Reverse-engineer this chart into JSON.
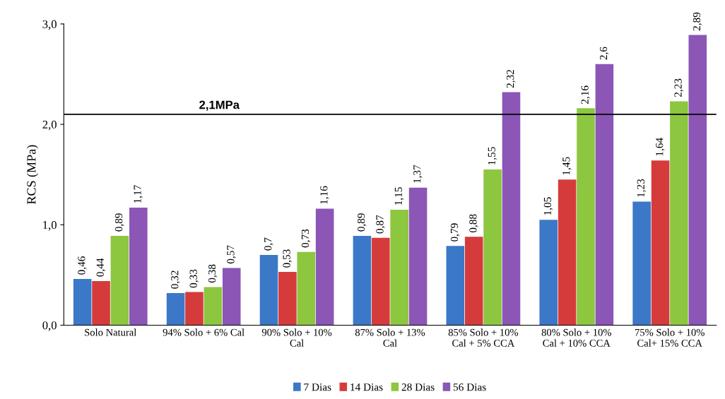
{
  "chart_data": {
    "type": "bar",
    "ylabel": "RCS (MPa)",
    "categories": [
      "Solo Natural",
      "94% Solo + 6% Cal",
      "90% Solo + 10%\nCal",
      "87% Solo + 13%\nCal",
      "85% Solo + 10%\nCal + 5% CCA",
      "80% Solo + 10%\nCal + 10% CCA",
      "75% Solo + 10%\nCal+ 15% CCA"
    ],
    "series": [
      {
        "name": "7 Dias",
        "color": "#3b78c8",
        "values": [
          0.46,
          0.32,
          0.7,
          0.89,
          0.79,
          1.05,
          1.23
        ],
        "value_labels": [
          "0,46",
          "0,32",
          "0,7",
          "0,89",
          "0,79",
          "1,05",
          "1,23"
        ]
      },
      {
        "name": "14 Dias",
        "color": "#d63b3b",
        "values": [
          0.44,
          0.33,
          0.53,
          0.87,
          0.88,
          1.45,
          1.64
        ],
        "value_labels": [
          "0,44",
          "0,33",
          "0,53",
          "0,87",
          "0,88",
          "1,45",
          "1,64"
        ]
      },
      {
        "name": "28 Dias",
        "color": "#8dc63f",
        "values": [
          0.89,
          0.38,
          0.73,
          1.15,
          1.55,
          2.16,
          2.23
        ],
        "value_labels": [
          "0,89",
          "0,38",
          "0,73",
          "1,15",
          "1,55",
          "2,16",
          "2,23"
        ]
      },
      {
        "name": "56 Dias",
        "color": "#8b56b6",
        "values": [
          1.17,
          0.57,
          1.16,
          1.37,
          2.32,
          2.6,
          2.89
        ],
        "value_labels": [
          "1,17",
          "0,57",
          "1,16",
          "1,37",
          "2,32",
          "2,6",
          "2,89"
        ]
      }
    ],
    "ylim": [
      0,
      3
    ],
    "yticks": [
      {
        "value": 0,
        "label": "0,0"
      },
      {
        "value": 1,
        "label": "1,0"
      },
      {
        "value": 2,
        "label": "2,0"
      },
      {
        "value": 3,
        "label": "3,0"
      }
    ],
    "ref_lines": [
      {
        "axis": "y",
        "value": 2.1,
        "label": "2,1MPa",
        "color": "#000000"
      }
    ],
    "grid": false,
    "legend": "bottom"
  }
}
